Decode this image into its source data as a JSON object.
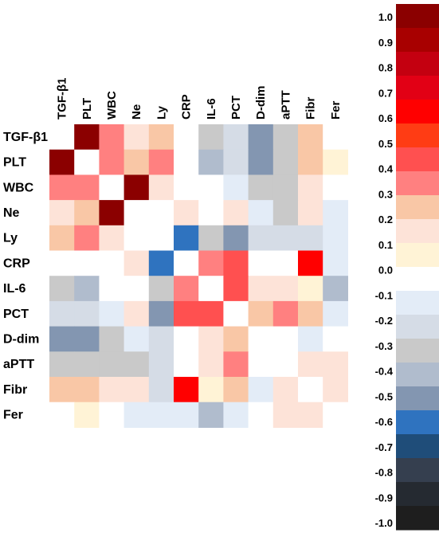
{
  "chart_data": {
    "type": "heatmap",
    "title": "",
    "xlabel": "",
    "ylabel": "",
    "variables": [
      "TGF-β1",
      "PLT",
      "WBC",
      "Ne",
      "Ly",
      "CRP",
      "IL-6",
      "PCT",
      "D-dim",
      "aPTT",
      "Fibr",
      "Fer"
    ],
    "matrix": [
      [
        null,
        1.0,
        0.4,
        0.2,
        0.3,
        0.0,
        -0.3,
        -0.2,
        -0.5,
        -0.3,
        0.3,
        0.0
      ],
      [
        1.0,
        null,
        0.4,
        0.3,
        0.4,
        0.0,
        -0.4,
        -0.2,
        -0.5,
        -0.3,
        0.3,
        0.1
      ],
      [
        0.4,
        0.4,
        null,
        1.0,
        0.2,
        0.0,
        0.0,
        -0.1,
        -0.3,
        -0.3,
        0.2,
        0.0
      ],
      [
        0.2,
        0.3,
        1.0,
        null,
        0.0,
        0.2,
        0.0,
        0.2,
        -0.1,
        -0.3,
        0.2,
        -0.1
      ],
      [
        0.3,
        0.4,
        0.2,
        0.0,
        null,
        -0.6,
        -0.3,
        -0.5,
        -0.2,
        -0.2,
        -0.2,
        -0.1
      ],
      [
        0.0,
        0.0,
        0.0,
        0.2,
        -0.6,
        null,
        0.4,
        0.5,
        0.0,
        0.0,
        0.7,
        -0.1
      ],
      [
        -0.3,
        -0.4,
        0.0,
        0.0,
        -0.3,
        0.4,
        null,
        0.5,
        0.2,
        0.2,
        0.1,
        -0.4
      ],
      [
        -0.2,
        -0.2,
        -0.1,
        0.2,
        -0.5,
        0.5,
        0.5,
        null,
        0.3,
        0.4,
        0.3,
        -0.1
      ],
      [
        -0.5,
        -0.5,
        -0.3,
        -0.1,
        -0.2,
        0.0,
        0.2,
        0.3,
        null,
        0.0,
        -0.1,
        0.0
      ],
      [
        -0.3,
        -0.3,
        -0.3,
        -0.3,
        -0.2,
        0.0,
        0.2,
        0.4,
        0.0,
        null,
        0.2,
        0.2
      ],
      [
        0.3,
        0.3,
        0.2,
        0.2,
        -0.2,
        0.7,
        0.1,
        0.3,
        -0.1,
        0.2,
        null,
        0.2
      ],
      [
        0.0,
        0.1,
        0.0,
        -0.1,
        -0.1,
        -0.1,
        -0.4,
        -0.1,
        0.0,
        0.2,
        0.2,
        null
      ]
    ],
    "color_scale": {
      "min": -1.0,
      "max": 1.0,
      "labels": [
        "1.0",
        "0.9",
        "0.8",
        "0.7",
        "0.6",
        "0.5",
        "0.4",
        "0.3",
        "0.2",
        "0.1",
        "0.0",
        "-0.1",
        "-0.2",
        "-0.3",
        "-0.4",
        "-0.5",
        "-0.6",
        "-0.7",
        "-0.8",
        "-0.9",
        "-1.0"
      ],
      "colors": [
        "#8b0000",
        "#a80000",
        "#c40010",
        "#e20015",
        "#ff0000",
        "#ff3c14",
        "#ff5050",
        "#ff8080",
        "#f9c7a6",
        "#fde3d8",
        "#fff3d6",
        "#ffffff",
        "#e3ecf7",
        "#d5dce6",
        "#c9c9c9",
        "#b0bccd",
        "#8396b1",
        "#2f73bf",
        "#1f4d79",
        "#353f4f",
        "#252a31",
        "#1e1e1e"
      ]
    },
    "legend_placement": "right",
    "grid": false
  }
}
